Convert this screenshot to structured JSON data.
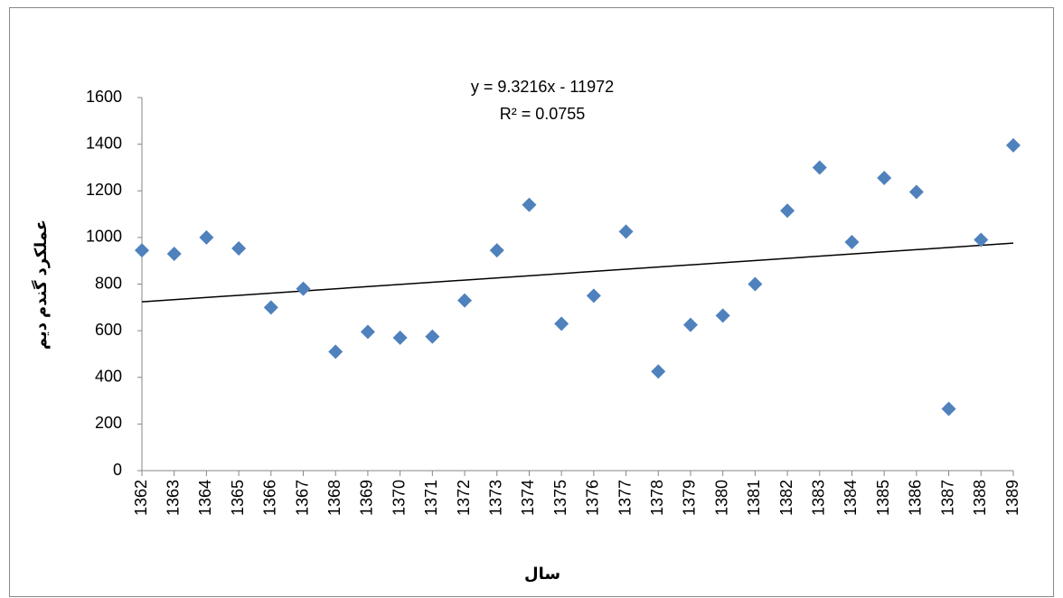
{
  "chart_data": {
    "type": "scatter",
    "x_label": "سال",
    "y_label": "عملکرد گندم دیم",
    "x": [
      1362,
      1363,
      1364,
      1365,
      1366,
      1367,
      1368,
      1369,
      1370,
      1371,
      1372,
      1373,
      1374,
      1375,
      1376,
      1377,
      1378,
      1379,
      1380,
      1381,
      1382,
      1383,
      1384,
      1385,
      1386,
      1387,
      1388,
      1389
    ],
    "values": [
      945,
      930,
      1000,
      953,
      700,
      780,
      510,
      595,
      570,
      575,
      730,
      945,
      1140,
      630,
      750,
      1025,
      425,
      625,
      665,
      800,
      1115,
      1300,
      980,
      1255,
      1195,
      265,
      990,
      1395
    ],
    "color": "#4f81bd",
    "xlim": [
      1362,
      1389
    ],
    "xticks": [
      1362,
      1363,
      1364,
      1365,
      1366,
      1367,
      1368,
      1369,
      1370,
      1371,
      1372,
      1373,
      1374,
      1375,
      1376,
      1377,
      1378,
      1379,
      1380,
      1381,
      1382,
      1383,
      1384,
      1385,
      1386,
      1387,
      1388,
      1389
    ],
    "ylim": [
      0,
      1600
    ],
    "yticks": [
      0,
      200,
      400,
      600,
      800,
      1000,
      1200,
      1400,
      1600
    ],
    "trendline": {
      "equation": "y = 9.3216x - 11972",
      "r_squared": "R² = 0.0755",
      "slope": 9.3216,
      "intercept": -11972,
      "color": "#000000"
    }
  }
}
